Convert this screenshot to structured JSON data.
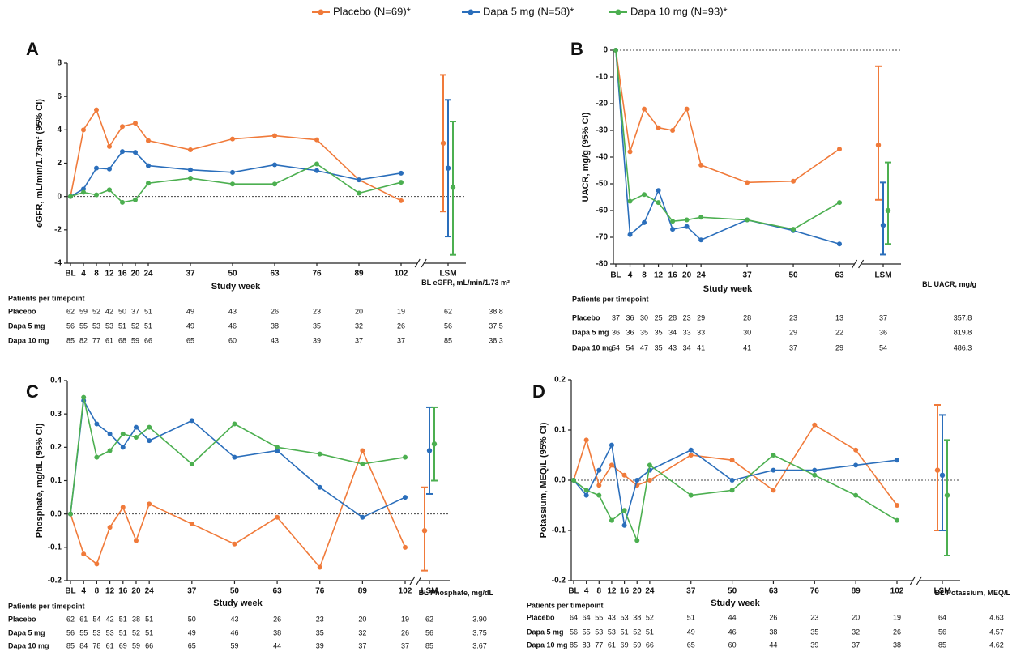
{
  "legend": [
    {
      "name": "Placebo (N=69)*",
      "color": "#f07a3a"
    },
    {
      "name": "Dapa 5 mg (N=58)*",
      "color": "#2a6ebb"
    },
    {
      "name": "Dapa 10 mg (N=93)*",
      "color": "#4caf50"
    }
  ],
  "chart_data": [
    {
      "type": "line",
      "panel": "A",
      "ylabel": "eGFR, mL/min/1.73m² (95% CI)",
      "xlabel": "Study week",
      "lsm_label": "LSM",
      "x": [
        0,
        4,
        8,
        12,
        16,
        20,
        24,
        37,
        50,
        63,
        76,
        89,
        102
      ],
      "xlim": [
        0,
        102
      ],
      "xticks": [
        {
          "value": 0,
          "label": "BL"
        },
        4,
        8,
        12,
        16,
        20,
        24,
        37,
        50,
        63,
        76,
        89,
        102
      ],
      "ylim": [
        -4,
        8
      ],
      "yticks": [
        -4,
        -2,
        0,
        2,
        4,
        6,
        8
      ],
      "series": [
        {
          "values": [
            0,
            4.0,
            5.2,
            3.0,
            4.2,
            4.4,
            3.35,
            2.8,
            3.45,
            3.65,
            3.4,
            1.0,
            -0.25
          ],
          "lsm": 3.2,
          "ci": [
            -0.9,
            7.3
          ]
        },
        {
          "values": [
            0,
            0.45,
            1.7,
            1.65,
            2.7,
            2.65,
            1.85,
            1.6,
            1.45,
            1.9,
            1.55,
            1.0,
            1.4
          ],
          "lsm": 1.7,
          "ci": [
            -2.4,
            5.8
          ]
        },
        {
          "values": [
            0,
            0.25,
            0.1,
            0.4,
            -0.35,
            -0.2,
            0.8,
            1.1,
            0.75,
            0.75,
            1.95,
            0.2,
            0.85
          ],
          "lsm": 0.55,
          "ci": [
            -3.5,
            4.5
          ]
        }
      ],
      "table": {
        "title": "Patients per timepoint",
        "bl_header": "BL eGFR, mL/min/1.73 m²",
        "rows": [
          {
            "label": "Placebo",
            "counts": [
              62,
              59,
              52,
              42,
              50,
              37,
              51,
              49,
              43,
              26,
              23,
              20,
              19
            ],
            "lsm_n": 62,
            "bl": "38.8"
          },
          {
            "label": "Dapa 5 mg",
            "counts": [
              56,
              55,
              53,
              53,
              51,
              52,
              51,
              49,
              46,
              38,
              35,
              32,
              26
            ],
            "lsm_n": 56,
            "bl": "37.5"
          },
          {
            "label": "Dapa 10 mg",
            "counts": [
              85,
              82,
              77,
              61,
              68,
              59,
              66,
              65,
              60,
              43,
              39,
              37,
              37
            ],
            "lsm_n": 85,
            "bl": "38.3"
          }
        ]
      }
    },
    {
      "type": "line",
      "panel": "B",
      "ylabel": "UACR, mg/g (95% CI)",
      "xlabel": "Study week",
      "lsm_label": "LSM",
      "x": [
        0,
        4,
        8,
        12,
        16,
        20,
        24,
        37,
        50,
        63
      ],
      "xlim": [
        0,
        63
      ],
      "xticks": [
        {
          "value": 0,
          "label": "BL"
        },
        4,
        8,
        12,
        16,
        20,
        24,
        37,
        50,
        63
      ],
      "ylim": [
        -80,
        0
      ],
      "yticks": [
        -80,
        -70,
        -60,
        -50,
        -40,
        -30,
        -20,
        -10,
        0
      ],
      "series": [
        {
          "values": [
            0,
            -38,
            -22,
            -29,
            -30,
            -22,
            -43,
            -49.5,
            -49,
            -37
          ],
          "lsm": -35.5,
          "ci": [
            -56,
            -6
          ]
        },
        {
          "values": [
            0,
            -69,
            -64.5,
            -52.5,
            -67,
            -66,
            -71,
            -63.5,
            -67.5,
            -72.5
          ],
          "lsm": -65.5,
          "ci": [
            -76.5,
            -49.5
          ]
        },
        {
          "values": [
            0,
            -56.5,
            -54,
            -57,
            -64,
            -63.5,
            -62.5,
            -63.5,
            -67,
            -57
          ],
          "lsm": -60,
          "ci": [
            -72.5,
            -42
          ]
        }
      ],
      "table": {
        "title": "Patients per timepoint",
        "bl_header": "BL UACR, mg/g",
        "rows": [
          {
            "label": "Placebo",
            "counts": [
              37,
              36,
              30,
              25,
              28,
              23,
              29,
              28,
              23,
              13
            ],
            "lsm_n": 37,
            "bl": "357.8"
          },
          {
            "label": "Dapa 5 mg",
            "counts": [
              36,
              36,
              35,
              35,
              34,
              33,
              33,
              30,
              29,
              22
            ],
            "lsm_n": 36,
            "bl": "819.8"
          },
          {
            "label": "Dapa 10 mg",
            "counts": [
              54,
              54,
              47,
              35,
              43,
              34,
              41,
              41,
              37,
              29
            ],
            "lsm_n": 54,
            "bl": "486.3"
          }
        ]
      }
    },
    {
      "type": "line",
      "panel": "C",
      "ylabel": "Phosphate, mg/dL (95% CI)",
      "xlabel": "Study week",
      "lsm_label": "LSM",
      "x": [
        0,
        4,
        8,
        12,
        16,
        20,
        24,
        37,
        50,
        63,
        76,
        89,
        102
      ],
      "xlim": [
        0,
        102
      ],
      "xticks": [
        {
          "value": 0,
          "label": "BL"
        },
        4,
        8,
        12,
        16,
        20,
        24,
        37,
        50,
        63,
        76,
        89,
        102
      ],
      "ylim": [
        -0.2,
        0.4
      ],
      "yticks": [
        -0.2,
        -0.1,
        {
          "value": 0,
          "label": "0.0"
        },
        0.1,
        0.2,
        0.3,
        0.4
      ],
      "series": [
        {
          "values": [
            0,
            -0.12,
            -0.15,
            -0.04,
            0.02,
            -0.08,
            0.03,
            -0.03,
            -0.09,
            -0.01,
            -0.16,
            0.19,
            -0.1
          ],
          "lsm": -0.05,
          "ci": [
            -0.17,
            0.08
          ]
        },
        {
          "values": [
            0,
            0.34,
            0.27,
            0.24,
            0.2,
            0.26,
            0.22,
            0.28,
            0.17,
            0.19,
            0.08,
            -0.01,
            0.05
          ],
          "lsm": 0.19,
          "ci": [
            0.06,
            0.32
          ]
        },
        {
          "values": [
            0,
            0.35,
            0.17,
            0.19,
            0.24,
            0.23,
            0.26,
            0.15,
            0.27,
            0.2,
            0.18,
            0.15,
            0.17
          ],
          "lsm": 0.21,
          "ci": [
            0.1,
            0.32
          ]
        }
      ],
      "table": {
        "title": "Patients per timepoint",
        "bl_header": "BL Phosphate, mg/dL",
        "rows": [
          {
            "label": "Placebo",
            "counts": [
              62,
              61,
              54,
              42,
              51,
              38,
              51,
              50,
              43,
              26,
              23,
              20,
              19
            ],
            "lsm_n": 62,
            "bl": "3.90"
          },
          {
            "label": "Dapa 5 mg",
            "counts": [
              56,
              55,
              53,
              53,
              51,
              52,
              51,
              49,
              46,
              38,
              35,
              32,
              26
            ],
            "lsm_n": 56,
            "bl": "3.75"
          },
          {
            "label": "Dapa 10 mg",
            "counts": [
              85,
              84,
              78,
              61,
              69,
              59,
              66,
              65,
              59,
              44,
              39,
              37,
              37
            ],
            "lsm_n": 85,
            "bl": "3.67"
          }
        ]
      }
    },
    {
      "type": "line",
      "panel": "D",
      "ylabel": "Potassium, MEQ/L (95% CI)",
      "xlabel": "Study week",
      "lsm_label": "LSM",
      "x": [
        0,
        4,
        8,
        12,
        16,
        20,
        24,
        37,
        50,
        63,
        76,
        89,
        102
      ],
      "xlim": [
        0,
        102
      ],
      "xticks": [
        {
          "value": 0,
          "label": "BL"
        },
        4,
        8,
        12,
        16,
        20,
        24,
        37,
        50,
        63,
        76,
        89,
        102
      ],
      "ylim": [
        -0.2,
        0.2
      ],
      "yticks": [
        -0.2,
        -0.1,
        {
          "value": 0,
          "label": "0.0"
        },
        0.1,
        0.2
      ],
      "series": [
        {
          "values": [
            0,
            0.08,
            -0.01,
            0.03,
            0.01,
            -0.01,
            0.0,
            0.05,
            0.04,
            -0.02,
            0.11,
            0.06,
            -0.05
          ],
          "lsm": 0.02,
          "ci": [
            -0.1,
            0.15
          ]
        },
        {
          "values": [
            0,
            -0.03,
            0.02,
            0.07,
            -0.09,
            0.0,
            0.02,
            0.06,
            0.0,
            0.02,
            0.02,
            0.03,
            0.04
          ],
          "lsm": 0.01,
          "ci": [
            -0.1,
            0.13
          ]
        },
        {
          "values": [
            0,
            -0.02,
            -0.03,
            -0.08,
            -0.06,
            -0.12,
            0.03,
            -0.03,
            -0.02,
            0.05,
            0.01,
            -0.03,
            -0.08
          ],
          "lsm": -0.03,
          "ci": [
            -0.15,
            0.08
          ]
        }
      ],
      "table": {
        "title": "Patients per timepoint",
        "bl_header": "BL Potassium, MEQ/L",
        "rows": [
          {
            "label": "Placebo",
            "counts": [
              64,
              64,
              55,
              43,
              53,
              38,
              52,
              51,
              44,
              26,
              23,
              20,
              19
            ],
            "lsm_n": 64,
            "bl": "4.63"
          },
          {
            "label": "Dapa 5 mg",
            "counts": [
              56,
              55,
              53,
              53,
              51,
              52,
              51,
              49,
              46,
              38,
              35,
              32,
              26
            ],
            "lsm_n": 56,
            "bl": "4.57"
          },
          {
            "label": "Dapa 10 mg",
            "counts": [
              85,
              83,
              77,
              61,
              69,
              59,
              66,
              65,
              60,
              44,
              39,
              37,
              38
            ],
            "lsm_n": 85,
            "bl": "4.62"
          }
        ]
      }
    }
  ]
}
